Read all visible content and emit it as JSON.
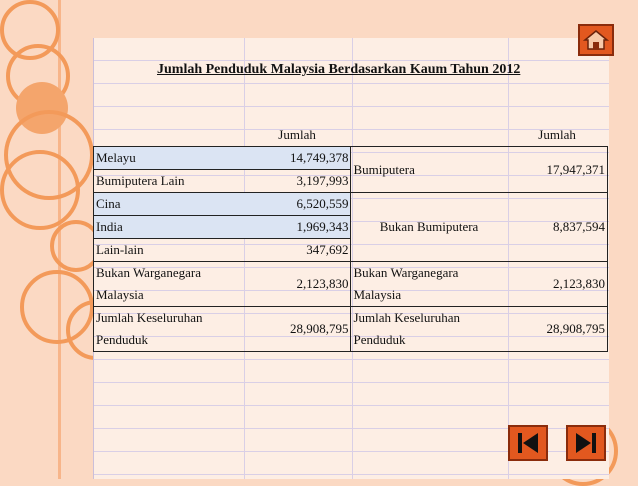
{
  "title": "Jumlah Penduduk Malaysia Berdasarkan Kaum Tahun 2012",
  "headers": {
    "left_amount": "Jumlah",
    "right_amount": "Jumlah"
  },
  "left_rows": [
    {
      "label": "Melayu",
      "value": "14,749,378"
    },
    {
      "label": "Bumiputera Lain",
      "value": "3,197,993"
    },
    {
      "label": "Cina",
      "value": "6,520,559"
    },
    {
      "label": "India",
      "value": "1,969,343"
    },
    {
      "label": "Lain-lain",
      "value": "347,692"
    },
    {
      "label_line1": "Bukan Warganegara",
      "label_line2": "Malaysia",
      "value": "2,123,830"
    },
    {
      "label_line1": "Jumlah Keseluruhan",
      "label_line2": "Penduduk",
      "value": "28,908,795"
    }
  ],
  "right_rows": [
    {
      "label": "Bumiputera",
      "value": "17,947,371"
    },
    {
      "label": "Bukan Bumiputera",
      "value": "8,837,594"
    },
    {
      "label_line1": "Bukan Warganegara",
      "label_line2": "Malaysia",
      "value": "2,123,830"
    },
    {
      "label_line1": "Jumlah Keseluruhan",
      "label_line2": "Penduduk",
      "value": "28,908,795"
    }
  ],
  "colors": {
    "background": "#fbd9c3",
    "accent": "#e2581f",
    "highlight": "#dbe4f3"
  },
  "icons": {
    "home": "home-icon",
    "first": "first-slide-icon",
    "last": "last-slide-icon"
  }
}
